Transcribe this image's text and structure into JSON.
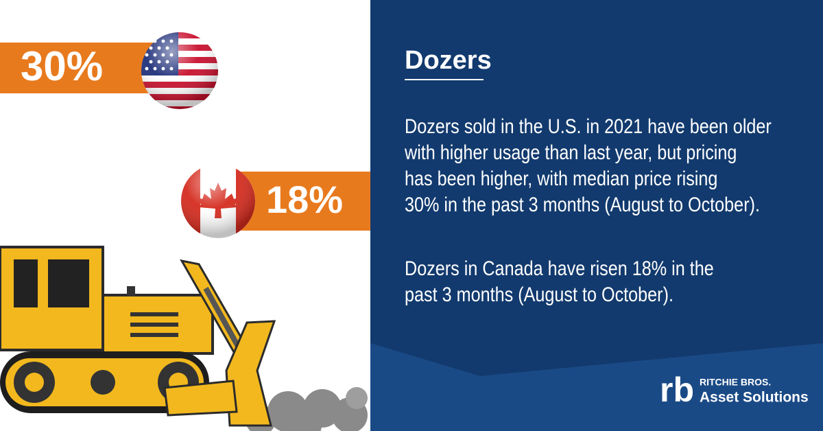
{
  "stats": [
    {
      "country": "U.S.",
      "value_label": "30%"
    },
    {
      "country": "Canada",
      "value_label": "18%"
    }
  ],
  "heading": "Dozers",
  "paragraphs": [
    [
      "Dozers sold in the U.S. in 2021 have been older",
      "with higher usage than last year, but pricing",
      "has been higher, with median price rising",
      "30% in the past 3 months (August to October)."
    ],
    [
      "Dozers in Canada have risen 18% in the",
      "past 3 months (August to October)."
    ]
  ],
  "logo": {
    "mark": "rb",
    "line1": "RITCHIE BROS.",
    "line2": "Asset Solutions"
  }
}
